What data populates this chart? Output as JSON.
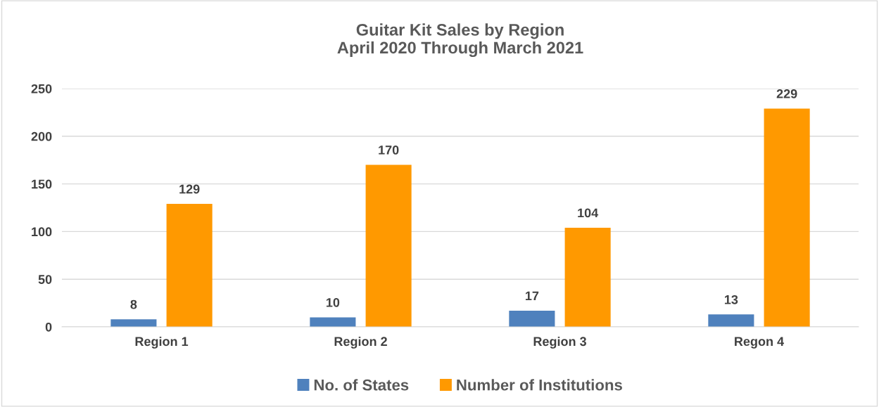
{
  "chart_data": {
    "type": "bar",
    "title": "Guitar Kit Sales by Region\nApril 2020 Through March 2021",
    "categories": [
      "Region 1",
      "Region 2",
      "Region 3",
      "Regon 4"
    ],
    "series": [
      {
        "name": "No. of States",
        "color": "#4f81bd",
        "values": [
          8,
          10,
          17,
          13
        ]
      },
      {
        "name": "Number of Institutions",
        "color": "#ff9900",
        "values": [
          129,
          170,
          104,
          229
        ]
      }
    ],
    "ylim": [
      0,
      250
    ],
    "yticks": [
      0,
      50,
      100,
      150,
      200,
      250
    ],
    "grid": "y",
    "legend": "bottom",
    "data_labels": true
  }
}
